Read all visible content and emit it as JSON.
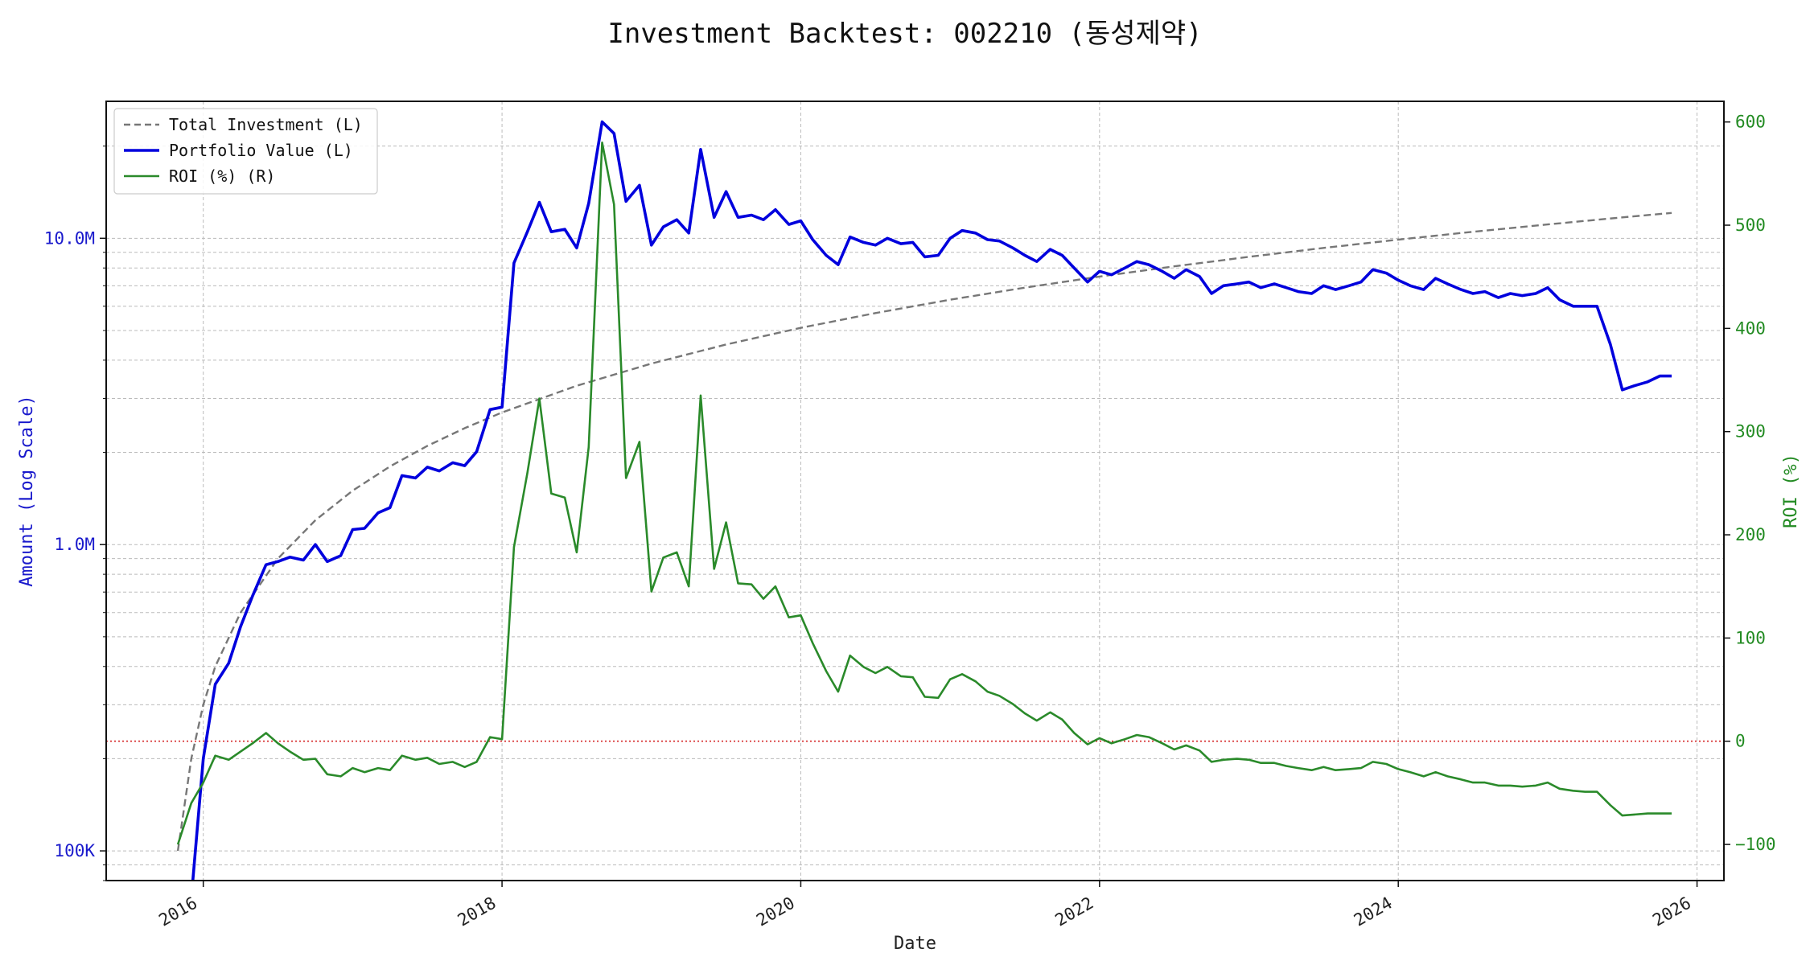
{
  "chart_data": {
    "type": "line",
    "title": "Investment Backtest: 002210 (동성제약)",
    "xlabel": "Date",
    "ylabel_left": "Amount (Log Scale)",
    "ylabel_right": "ROI (%)",
    "left_scale": "log",
    "left_ylim": [
      80000,
      28000000
    ],
    "right_ylim": [
      -135,
      620
    ],
    "xlim": [
      2015.35,
      2026.18
    ],
    "grid": true,
    "legend_placement": "top-left",
    "x_ticks": [
      {
        "value": 2016,
        "label": "2016"
      },
      {
        "value": 2018,
        "label": "2018"
      },
      {
        "value": 2020,
        "label": "2020"
      },
      {
        "value": 2022,
        "label": "2022"
      },
      {
        "value": 2024,
        "label": "2024"
      },
      {
        "value": 2026,
        "label": "2026"
      }
    ],
    "left_ticks": [
      {
        "value": 100000,
        "label": "100K"
      },
      {
        "value": 1000000,
        "label": "1.0M"
      },
      {
        "value": 10000000,
        "label": "10.0M"
      }
    ],
    "right_ticks": [
      {
        "value": -100,
        "label": "−100"
      },
      {
        "value": 0,
        "label": "0"
      },
      {
        "value": 100,
        "label": "100"
      },
      {
        "value": 200,
        "label": "200"
      },
      {
        "value": 300,
        "label": "300"
      },
      {
        "value": 400,
        "label": "400"
      },
      {
        "value": 500,
        "label": "500"
      },
      {
        "value": 600,
        "label": "600"
      }
    ],
    "reference_line": {
      "axis": "right",
      "value": 0,
      "color": "#d62728",
      "style": "dotted"
    },
    "series": [
      {
        "name": "Total Investment (L)",
        "axis": "left",
        "color": "#777777",
        "style": "dashed",
        "x": [
          2015.83,
          2015.92,
          2016.0,
          2016.08,
          2016.25,
          2016.5,
          2016.75,
          2017.0,
          2017.25,
          2017.5,
          2017.75,
          2018.0,
          2018.5,
          2019.0,
          2019.5,
          2020.0,
          2020.5,
          2021.0,
          2021.5,
          2022.0,
          2022.5,
          2023.0,
          2023.5,
          2024.0,
          2024.5,
          2025.0,
          2025.5,
          2025.83
        ],
        "y": [
          100000,
          200000,
          300000,
          400000,
          600000,
          900000,
          1200000,
          1500000,
          1800000,
          2100000,
          2400000,
          2700000,
          3300000,
          3900000,
          4500000,
          5100000,
          5700000,
          6300000,
          6900000,
          7500000,
          8100000,
          8700000,
          9300000,
          9900000,
          10500000,
          11100000,
          11700000,
          12100000
        ]
      },
      {
        "name": "Portfolio Value (L)",
        "axis": "left",
        "color": "#0000dd",
        "style": "solid",
        "x": [
          2015.92,
          2016.0,
          2016.08,
          2016.17,
          2016.25,
          2016.33,
          2016.42,
          2016.5,
          2016.58,
          2016.67,
          2016.75,
          2016.83,
          2016.92,
          2017.0,
          2017.08,
          2017.17,
          2017.25,
          2017.33,
          2017.42,
          2017.5,
          2017.58,
          2017.67,
          2017.75,
          2017.83,
          2017.92,
          2018.0,
          2018.08,
          2018.17,
          2018.25,
          2018.33,
          2018.42,
          2018.5,
          2018.58,
          2018.67,
          2018.75,
          2018.83,
          2018.92,
          2019.0,
          2019.08,
          2019.17,
          2019.25,
          2019.33,
          2019.42,
          2019.5,
          2019.58,
          2019.67,
          2019.75,
          2019.83,
          2019.92,
          2020.0,
          2020.08,
          2020.17,
          2020.25,
          2020.33,
          2020.42,
          2020.5,
          2020.58,
          2020.67,
          2020.75,
          2020.83,
          2020.92,
          2021.0,
          2021.08,
          2021.17,
          2021.25,
          2021.33,
          2021.42,
          2021.5,
          2021.58,
          2021.67,
          2021.75,
          2021.83,
          2021.92,
          2022.0,
          2022.08,
          2022.17,
          2022.25,
          2022.33,
          2022.42,
          2022.5,
          2022.58,
          2022.67,
          2022.75,
          2022.83,
          2022.92,
          2023.0,
          2023.08,
          2023.17,
          2023.25,
          2023.33,
          2023.42,
          2023.5,
          2023.58,
          2023.67,
          2023.75,
          2023.83,
          2023.92,
          2024.0,
          2024.08,
          2024.17,
          2024.25,
          2024.33,
          2024.42,
          2024.5,
          2024.58,
          2024.67,
          2024.75,
          2024.83,
          2024.92,
          2025.0,
          2025.08,
          2025.17,
          2025.25,
          2025.33,
          2025.42,
          2025.5,
          2025.58,
          2025.67,
          2025.75,
          2025.83
        ],
        "y": [
          70000,
          200000,
          350000,
          410000,
          540000,
          680000,
          860000,
          880000,
          910000,
          890000,
          1000000,
          880000,
          920000,
          1120000,
          1130000,
          1270000,
          1320000,
          1680000,
          1650000,
          1790000,
          1740000,
          1850000,
          1810000,
          2010000,
          2760000,
          2810000,
          8300000,
          10500000,
          13100000,
          10500000,
          10700000,
          9300000,
          13000000,
          24000000,
          22000000,
          13200000,
          14900000,
          9500000,
          10900000,
          11500000,
          10400000,
          19500000,
          11700000,
          14200000,
          11700000,
          11900000,
          11500000,
          12400000,
          11100000,
          11400000,
          9900000,
          8800000,
          8200000,
          10100000,
          9700000,
          9500000,
          10000000,
          9600000,
          9700000,
          8700000,
          8800000,
          10000000,
          10600000,
          10400000,
          9900000,
          9800000,
          9300000,
          8800000,
          8400000,
          9200000,
          8800000,
          8000000,
          7200000,
          7800000,
          7600000,
          8000000,
          8400000,
          8200000,
          7800000,
          7400000,
          7900000,
          7500000,
          6600000,
          7000000,
          7100000,
          7200000,
          6900000,
          7100000,
          6900000,
          6700000,
          6600000,
          7000000,
          6800000,
          7000000,
          7200000,
          7900000,
          7700000,
          7300000,
          7000000,
          6800000,
          7400000,
          7100000,
          6800000,
          6600000,
          6700000,
          6400000,
          6600000,
          6500000,
          6600000,
          6900000,
          6300000,
          6000000,
          6000000,
          6000000,
          4500000,
          3200000,
          3300000,
          3400000,
          3550000,
          3550000
        ]
      },
      {
        "name": "ROI (%) (R)",
        "axis": "right",
        "color": "#2a8a2a",
        "style": "solid",
        "x": [
          2015.83,
          2015.92,
          2016.0,
          2016.08,
          2016.17,
          2016.25,
          2016.33,
          2016.42,
          2016.5,
          2016.58,
          2016.67,
          2016.75,
          2016.83,
          2016.92,
          2017.0,
          2017.08,
          2017.17,
          2017.25,
          2017.33,
          2017.42,
          2017.5,
          2017.58,
          2017.67,
          2017.75,
          2017.83,
          2017.92,
          2018.0,
          2018.08,
          2018.17,
          2018.25,
          2018.33,
          2018.42,
          2018.5,
          2018.58,
          2018.67,
          2018.75,
          2018.83,
          2018.92,
          2019.0,
          2019.08,
          2019.17,
          2019.25,
          2019.33,
          2019.42,
          2019.5,
          2019.58,
          2019.67,
          2019.75,
          2019.83,
          2019.92,
          2020.0,
          2020.08,
          2020.17,
          2020.25,
          2020.33,
          2020.42,
          2020.5,
          2020.58,
          2020.67,
          2020.75,
          2020.83,
          2020.92,
          2021.0,
          2021.08,
          2021.17,
          2021.25,
          2021.33,
          2021.42,
          2021.5,
          2021.58,
          2021.67,
          2021.75,
          2021.83,
          2021.92,
          2022.0,
          2022.08,
          2022.17,
          2022.25,
          2022.33,
          2022.42,
          2022.5,
          2022.58,
          2022.67,
          2022.75,
          2022.83,
          2022.92,
          2023.0,
          2023.08,
          2023.17,
          2023.25,
          2023.33,
          2023.42,
          2023.5,
          2023.58,
          2023.67,
          2023.75,
          2023.83,
          2023.92,
          2024.0,
          2024.08,
          2024.17,
          2024.25,
          2024.33,
          2024.42,
          2024.5,
          2024.58,
          2024.67,
          2024.75,
          2024.83,
          2024.92,
          2025.0,
          2025.08,
          2025.17,
          2025.25,
          2025.33,
          2025.42,
          2025.5,
          2025.58,
          2025.67,
          2025.75,
          2025.83
        ],
        "y": [
          -100,
          -60,
          -40,
          -14,
          -18,
          -10,
          -2,
          8,
          -2,
          -10,
          -18,
          -17,
          -32,
          -34,
          -26,
          -30,
          -26,
          -28,
          -14,
          -18,
          -16,
          -22,
          -20,
          -25,
          -20,
          4,
          2,
          188,
          260,
          332,
          240,
          236,
          183,
          285,
          580,
          520,
          255,
          290,
          145,
          178,
          183,
          150,
          335,
          167,
          212,
          153,
          152,
          138,
          150,
          120,
          122,
          95,
          68,
          48,
          83,
          72,
          66,
          72,
          63,
          62,
          43,
          42,
          60,
          65,
          58,
          48,
          44,
          36,
          27,
          20,
          28,
          21,
          8,
          -3,
          3,
          -2,
          2,
          6,
          4,
          -2,
          -8,
          -4,
          -9,
          -20,
          -18,
          -17,
          -18,
          -21,
          -21,
          -24,
          -26,
          -28,
          -25,
          -28,
          -27,
          -26,
          -20,
          -22,
          -27,
          -30,
          -34,
          -30,
          -34,
          -37,
          -40,
          -40,
          -43,
          -43,
          -44,
          -43,
          -40,
          -46,
          -48,
          -49,
          -49,
          -62,
          -72,
          -71,
          -70,
          -70,
          -70
        ]
      }
    ]
  }
}
